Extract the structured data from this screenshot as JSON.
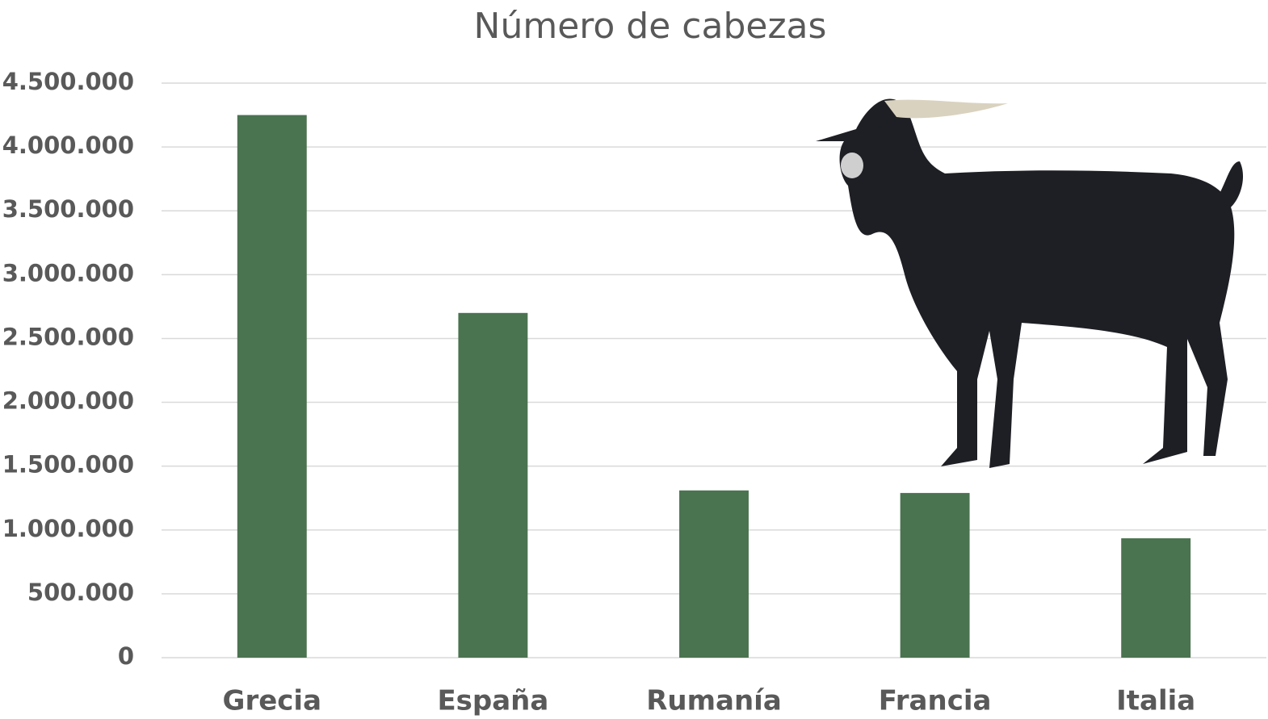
{
  "chart_data": {
    "type": "bar",
    "title": "Número de cabezas",
    "categories": [
      "Grecia",
      "España",
      "Rumanía",
      "Francia",
      "Italia"
    ],
    "values": [
      4250000,
      2700000,
      1310000,
      1290000,
      935000
    ],
    "color": "#4a7350",
    "ylim": [
      0,
      4500000
    ],
    "yticks": [
      0,
      {
        "value": 500000,
        "label": "500.000"
      },
      {
        "value": 1000000,
        "label": "1.000.000"
      },
      {
        "value": 1500000,
        "label": "1.500.000"
      },
      {
        "value": 2000000,
        "label": "2.000.000"
      },
      {
        "value": 2500000,
        "label": "2.500.000"
      },
      {
        "value": 3000000,
        "label": "3.000.000"
      },
      {
        "value": 3500000,
        "label": "3.500.000"
      },
      {
        "value": 4000000,
        "label": "4.000.000"
      },
      {
        "value": 4500000,
        "label": "4.500.000"
      }
    ],
    "grid": true
  }
}
